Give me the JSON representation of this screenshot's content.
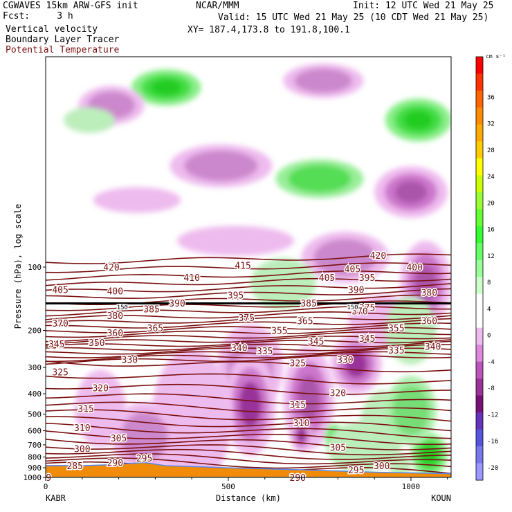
{
  "header": {
    "title": "CGWAVES 15km ARW-GFS init",
    "fcst": "Fcst:     3 h",
    "field1": "Vertical velocity",
    "field2": "Boundary Layer Tracer",
    "field3": "Potential Temperature",
    "org": "NCAR/MMM",
    "init": "Init: 12 UTC Wed 21 May 25",
    "valid": "Valid: 15 UTC Wed 21 May 25 (10 CDT Wed 21 May 25)",
    "xy": "XY= 187.4,173.8 to 191.8,100.1"
  },
  "colors": {
    "theta_contour": "#7a1010",
    "terrain": "#f08c0a",
    "tropopause": "#000000"
  },
  "chart_data": {
    "type": "heatmap",
    "xlabel": "Distance (km)",
    "ylabel": "Pressure (hPa), log scale",
    "xlim": [
      0,
      1110
    ],
    "ylim": [
      1000,
      10
    ],
    "x_ticks": [
      "0",
      "500",
      "1000"
    ],
    "y_ticks": [
      {
        "p": 100,
        "label": "100"
      },
      {
        "p": 200,
        "label": "200"
      },
      {
        "p": 300,
        "label": "300"
      },
      {
        "p": 400,
        "label": "400"
      },
      {
        "p": 500,
        "label": "500"
      },
      {
        "p": 600,
        "label": "600"
      },
      {
        "p": 700,
        "label": "700"
      },
      {
        "p": 800,
        "label": "800"
      },
      {
        "p": 900,
        "label": "900"
      },
      {
        "p": 1000,
        "label": "1000"
      }
    ],
    "endpoint_left": "KABR",
    "endpoint_right": "KOUN",
    "colorbar": {
      "unit": "cm s⁻¹",
      "labels": [
        "36",
        "32",
        "28",
        "24",
        "20",
        "16",
        "12",
        "8",
        "4",
        "0",
        "-4",
        "-8",
        "-12",
        "-16",
        "-20"
      ],
      "colors": [
        "#ff0000",
        "#ff3300",
        "#ff6600",
        "#ff8c00",
        "#ffaa00",
        "#ffcc00",
        "#ffff00",
        "#ccff00",
        "#99ff33",
        "#66ff33",
        "#33ff33",
        "#66ff66",
        "#99ff99",
        "#ccffcc",
        "#ffffff",
        "#ffffff",
        "#eebbee",
        "#dd88dd",
        "#bb55bb",
        "#993399",
        "#771177",
        "#6633bb",
        "#5555dd",
        "#7777ee",
        "#9999ff"
      ]
    },
    "vertical_velocity_blobs": [
      {
        "x": 330,
        "p": 14,
        "rx": 95,
        "ry": 42,
        "v": 14
      },
      {
        "x": 180,
        "p": 17,
        "rx": 90,
        "ry": 45,
        "v": -6
      },
      {
        "x": 120,
        "p": 20,
        "rx": 70,
        "ry": 30,
        "v": 4
      },
      {
        "x": 760,
        "p": 13,
        "rx": 110,
        "ry": 40,
        "v": -6
      },
      {
        "x": 1020,
        "p": 20,
        "rx": 90,
        "ry": 50,
        "v": 14
      },
      {
        "x": 750,
        "p": 38,
        "rx": 120,
        "ry": 45,
        "v": 12
      },
      {
        "x": 480,
        "p": 33,
        "rx": 140,
        "ry": 50,
        "v": -6
      },
      {
        "x": 1000,
        "p": 44,
        "rx": 100,
        "ry": 60,
        "v": -8
      },
      {
        "x": 250,
        "p": 48,
        "rx": 120,
        "ry": 30,
        "v": -4
      },
      {
        "x": 520,
        "p": 75,
        "rx": 160,
        "ry": 35,
        "v": -4
      },
      {
        "x": 820,
        "p": 90,
        "rx": 120,
        "ry": 60,
        "v": -6
      },
      {
        "x": 1040,
        "p": 120,
        "rx": 70,
        "ry": 100,
        "v": -8
      },
      {
        "x": 650,
        "p": 120,
        "rx": 90,
        "ry": 60,
        "v": 4
      },
      {
        "x": 920,
        "p": 180,
        "rx": 90,
        "ry": 60,
        "v": -4
      },
      {
        "x": 1000,
        "p": 200,
        "rx": 70,
        "ry": 80,
        "v": 4
      },
      {
        "x": 560,
        "p": 300,
        "rx": 90,
        "ry": 100,
        "v": -6
      },
      {
        "x": 850,
        "p": 290,
        "rx": 70,
        "ry": 70,
        "v": -10
      },
      {
        "x": 560,
        "p": 450,
        "rx": 70,
        "ry": 120,
        "v": -10
      },
      {
        "x": 400,
        "p": 520,
        "rx": 110,
        "ry": 160,
        "v": -4
      },
      {
        "x": 720,
        "p": 420,
        "rx": 70,
        "ry": 120,
        "v": -8
      },
      {
        "x": 150,
        "p": 470,
        "rx": 70,
        "ry": 90,
        "v": -4
      },
      {
        "x": 270,
        "p": 640,
        "rx": 90,
        "ry": 80,
        "v": -6
      },
      {
        "x": 700,
        "p": 630,
        "rx": 30,
        "ry": 40,
        "v": -12
      },
      {
        "x": 790,
        "p": 640,
        "rx": 25,
        "ry": 30,
        "v": 10
      },
      {
        "x": 860,
        "p": 720,
        "rx": 90,
        "ry": 60,
        "v": 4
      },
      {
        "x": 1050,
        "p": 780,
        "rx": 50,
        "ry": 50,
        "v": 14
      },
      {
        "x": 920,
        "p": 590,
        "rx": 60,
        "ry": 90,
        "v": 4
      },
      {
        "x": 1000,
        "p": 480,
        "rx": 70,
        "ry": 80,
        "v": 6
      },
      {
        "x": 970,
        "p": 880,
        "rx": 30,
        "ry": 30,
        "v": 4
      }
    ],
    "theta_labels": [
      {
        "x": 180,
        "p": 100,
        "label": "420"
      },
      {
        "x": 540,
        "p": 98,
        "label": "415"
      },
      {
        "x": 910,
        "p": 88,
        "label": "420"
      },
      {
        "x": 400,
        "p": 112,
        "label": "410"
      },
      {
        "x": 770,
        "p": 112,
        "label": "405"
      },
      {
        "x": 840,
        "p": 102,
        "label": "405"
      },
      {
        "x": 1010,
        "p": 100,
        "label": "400"
      },
      {
        "x": 40,
        "p": 128,
        "label": "405"
      },
      {
        "x": 190,
        "p": 130,
        "label": "400"
      },
      {
        "x": 520,
        "p": 136,
        "label": "395"
      },
      {
        "x": 880,
        "p": 112,
        "label": "395"
      },
      {
        "x": 850,
        "p": 128,
        "label": "390"
      },
      {
        "x": 1050,
        "p": 132,
        "label": "380"
      },
      {
        "x": 360,
        "p": 148,
        "label": "390"
      },
      {
        "x": 720,
        "p": 148,
        "label": "385"
      },
      {
        "x": 290,
        "p": 158,
        "label": "385"
      },
      {
        "x": 190,
        "p": 170,
        "label": "380"
      },
      {
        "x": 880,
        "p": 156,
        "label": "375"
      },
      {
        "x": 860,
        "p": 162,
        "label": "370"
      },
      {
        "x": 550,
        "p": 174,
        "label": "375"
      },
      {
        "x": 710,
        "p": 180,
        "label": "365"
      },
      {
        "x": 40,
        "p": 185,
        "label": "370"
      },
      {
        "x": 300,
        "p": 195,
        "label": "365"
      },
      {
        "x": 190,
        "p": 205,
        "label": "360"
      },
      {
        "x": 640,
        "p": 200,
        "label": "355"
      },
      {
        "x": 960,
        "p": 195,
        "label": "355"
      },
      {
        "x": 1050,
        "p": 180,
        "label": "360"
      },
      {
        "x": 30,
        "p": 232,
        "label": "345"
      },
      {
        "x": 140,
        "p": 228,
        "label": "350"
      },
      {
        "x": 740,
        "p": 225,
        "label": "345"
      },
      {
        "x": 880,
        "p": 218,
        "label": "345"
      },
      {
        "x": 530,
        "p": 242,
        "label": "340"
      },
      {
        "x": 600,
        "p": 250,
        "label": "335"
      },
      {
        "x": 960,
        "p": 248,
        "label": "335"
      },
      {
        "x": 1060,
        "p": 238,
        "label": "340"
      },
      {
        "x": 230,
        "p": 275,
        "label": "330"
      },
      {
        "x": 690,
        "p": 285,
        "label": "325"
      },
      {
        "x": 820,
        "p": 275,
        "label": "330"
      },
      {
        "x": 40,
        "p": 315,
        "label": "325"
      },
      {
        "x": 150,
        "p": 375,
        "label": "320"
      },
      {
        "x": 800,
        "p": 395,
        "label": "320"
      },
      {
        "x": 110,
        "p": 470,
        "label": "315"
      },
      {
        "x": 690,
        "p": 450,
        "label": "315"
      },
      {
        "x": 100,
        "p": 580,
        "label": "310"
      },
      {
        "x": 700,
        "p": 550,
        "label": "310"
      },
      {
        "x": 200,
        "p": 650,
        "label": "305"
      },
      {
        "x": 800,
        "p": 720,
        "label": "305"
      },
      {
        "x": 100,
        "p": 730,
        "label": "300"
      },
      {
        "x": 920,
        "p": 880,
        "label": "300"
      },
      {
        "x": 80,
        "p": 880,
        "label": "285"
      },
      {
        "x": 190,
        "p": 850,
        "label": "290"
      },
      {
        "x": 270,
        "p": 810,
        "label": "295"
      },
      {
        "x": 850,
        "p": 920,
        "label": "295"
      },
      {
        "x": 690,
        "p": 1000,
        "label": "290"
      },
      {
        "x": 8,
        "p": 1000,
        "label": "9"
      }
    ],
    "tropopause_labels": [
      {
        "x": 210,
        "p": 155,
        "label": "150"
      },
      {
        "x": 840,
        "p": 155,
        "label": "150"
      }
    ],
    "terrain_p": [
      {
        "x": 0,
        "p": 880
      },
      {
        "x": 100,
        "p": 880
      },
      {
        "x": 180,
        "p": 870
      },
      {
        "x": 270,
        "p": 850
      },
      {
        "x": 330,
        "p": 880
      },
      {
        "x": 500,
        "p": 900
      },
      {
        "x": 700,
        "p": 920
      },
      {
        "x": 900,
        "p": 945
      },
      {
        "x": 1110,
        "p": 960
      }
    ]
  }
}
